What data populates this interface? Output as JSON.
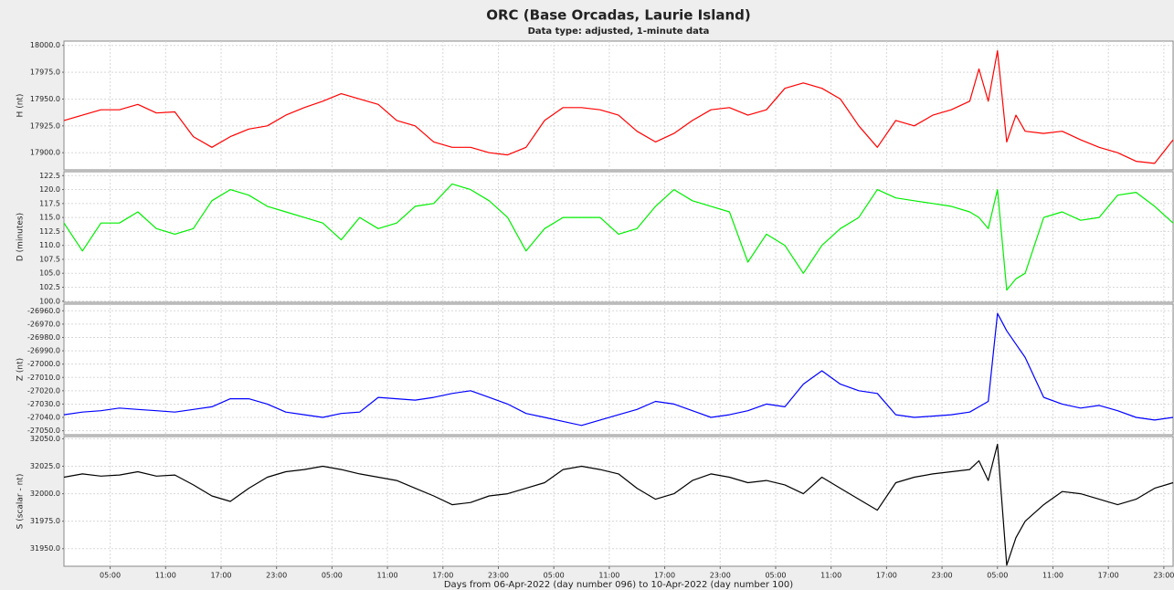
{
  "title": "ORC (Base Orcadas, Laurie Island)",
  "subtitle": "Data type: adjusted, 1-minute data",
  "x_label": "Days from 06-Apr-2022 (day number 096) to 10-Apr-2022 (day number 100)",
  "chart_data": [
    {
      "type": "line",
      "y_label": "H (nt)",
      "color": "#ff0000",
      "grid": true,
      "x": [
        0,
        2,
        4,
        6,
        8,
        10,
        12,
        14,
        16,
        18,
        20,
        22,
        24,
        26,
        28,
        30,
        32,
        34,
        36,
        38,
        40,
        42,
        44,
        46,
        48,
        50,
        52,
        54,
        56,
        58,
        60,
        62,
        64,
        66,
        68,
        70,
        72,
        74,
        76,
        78,
        80,
        82,
        84,
        86,
        88,
        90,
        92,
        94,
        96,
        98,
        99,
        100,
        101,
        102,
        103,
        104,
        106,
        108,
        110,
        112,
        114,
        116,
        118,
        120
      ],
      "values": [
        17930,
        17935,
        17940,
        17940,
        17945,
        17937,
        17938,
        17915,
        17905,
        17915,
        17922,
        17925,
        17935,
        17942,
        17948,
        17955,
        17950,
        17945,
        17930,
        17925,
        17910,
        17905,
        17905,
        17900,
        17898,
        17905,
        17930,
        17942,
        17942,
        17940,
        17935,
        17920,
        17910,
        17918,
        17930,
        17940,
        17942,
        17935,
        17940,
        17960,
        17965,
        17960,
        17950,
        17925,
        17905,
        17930,
        17925,
        17935,
        17940,
        17948,
        17978,
        17948,
        17995,
        17910,
        17935,
        17920,
        17918,
        17920,
        17912,
        17905,
        17900,
        17892,
        17890,
        17912
      ],
      "xlim": [
        0,
        120
      ],
      "ylim": [
        17884,
        18004
      ],
      "yticks": [
        {
          "value": 17900,
          "label": "17900.0"
        },
        {
          "value": 17925,
          "label": "17925.0"
        },
        {
          "value": 17950,
          "label": "17950.0"
        },
        {
          "value": 17975,
          "label": "17975.0"
        },
        {
          "value": 18000,
          "label": "18000.0"
        }
      ]
    },
    {
      "type": "line",
      "y_label": "D (minutes)",
      "color": "#00ee00",
      "grid": true,
      "x": [
        0,
        2,
        4,
        6,
        8,
        10,
        12,
        14,
        16,
        18,
        20,
        22,
        24,
        26,
        28,
        30,
        32,
        34,
        36,
        38,
        40,
        42,
        44,
        46,
        48,
        50,
        52,
        54,
        56,
        58,
        60,
        62,
        64,
        66,
        68,
        70,
        72,
        74,
        76,
        78,
        80,
        82,
        84,
        86,
        88,
        90,
        92,
        94,
        96,
        98,
        99,
        100,
        101,
        102,
        103,
        104,
        106,
        108,
        110,
        112,
        114,
        116,
        118,
        120
      ],
      "values": [
        114,
        109,
        114,
        114,
        116,
        113,
        112,
        113,
        118,
        120,
        119,
        117,
        116,
        115,
        114,
        111,
        115,
        113,
        114,
        117,
        117.5,
        121,
        120,
        118,
        115,
        109,
        113,
        115,
        115,
        115,
        112,
        113,
        117,
        120,
        118,
        117,
        116,
        107,
        112,
        110,
        105,
        110,
        113,
        115,
        120,
        118.5,
        118,
        117.5,
        117,
        116,
        115,
        113,
        120,
        102,
        104,
        105,
        115,
        116,
        114.5,
        115,
        119,
        119.5,
        117,
        114
      ],
      "xlim": [
        0,
        120
      ],
      "ylim": [
        99.8,
        123.2
      ],
      "yticks": [
        {
          "value": 100,
          "label": "100.0"
        },
        {
          "value": 102.5,
          "label": "102.5"
        },
        {
          "value": 105,
          "label": "105.0"
        },
        {
          "value": 107.5,
          "label": "107.5"
        },
        {
          "value": 110,
          "label": "110.0"
        },
        {
          "value": 112.5,
          "label": "112.5"
        },
        {
          "value": 115,
          "label": "115.0"
        },
        {
          "value": 117.5,
          "label": "117.5"
        },
        {
          "value": 120,
          "label": "120.0"
        },
        {
          "value": 122.5,
          "label": "122.5"
        }
      ]
    },
    {
      "type": "line",
      "y_label": "Z (nt)",
      "color": "#0000ff",
      "grid": true,
      "x": [
        0,
        2,
        4,
        6,
        8,
        10,
        12,
        14,
        16,
        18,
        20,
        22,
        24,
        26,
        28,
        30,
        32,
        34,
        36,
        38,
        40,
        42,
        44,
        46,
        48,
        50,
        52,
        54,
        56,
        58,
        60,
        62,
        64,
        66,
        68,
        70,
        72,
        74,
        76,
        78,
        80,
        82,
        84,
        86,
        88,
        90,
        92,
        94,
        96,
        98,
        99,
        100,
        101,
        102,
        103,
        104,
        106,
        108,
        110,
        112,
        114,
        116,
        118,
        120
      ],
      "values": [
        -27038,
        -27036,
        -27035,
        -27033,
        -27034,
        -27035,
        -27036,
        -27034,
        -27032,
        -27026,
        -27026,
        -27030,
        -27036,
        -27038,
        -27040,
        -27037,
        -27036,
        -27025,
        -27026,
        -27027,
        -27025,
        -27022,
        -27020,
        -27025,
        -27030,
        -27037,
        -27040,
        -27043,
        -27046,
        -27042,
        -27038,
        -27034,
        -27028,
        -27030,
        -27035,
        -27040,
        -27038,
        -27035,
        -27030,
        -27032,
        -27015,
        -27005,
        -27015,
        -27020,
        -27022,
        -27038,
        -27040,
        -27039,
        -27038,
        -27036,
        -27032,
        -27028,
        -26962,
        -26975,
        -26985,
        -26995,
        -27025,
        -27030,
        -27033,
        -27031,
        -27035,
        -27040,
        -27042,
        -27040
      ],
      "xlim": [
        0,
        120
      ],
      "ylim": [
        -27053,
        -26955
      ],
      "yticks": [
        {
          "value": -27050,
          "label": "-27050.0"
        },
        {
          "value": -27040,
          "label": "-27040.0"
        },
        {
          "value": -27030,
          "label": "-27030.0"
        },
        {
          "value": -27020,
          "label": "-27020.0"
        },
        {
          "value": -27010,
          "label": "-27010.0"
        },
        {
          "value": -27000,
          "label": "-27000.0"
        },
        {
          "value": -26990,
          "label": "-26990.0"
        },
        {
          "value": -26980,
          "label": "-26980.0"
        },
        {
          "value": -26970,
          "label": "-26970.0"
        },
        {
          "value": -26960,
          "label": "-26960.0"
        }
      ]
    },
    {
      "type": "line",
      "y_label": "S (scalar - nt)",
      "color": "#000000",
      "grid": true,
      "x": [
        0,
        2,
        4,
        6,
        8,
        10,
        12,
        14,
        16,
        18,
        20,
        22,
        24,
        26,
        28,
        30,
        32,
        34,
        36,
        38,
        40,
        42,
        44,
        46,
        48,
        50,
        52,
        54,
        56,
        58,
        60,
        62,
        64,
        66,
        68,
        70,
        72,
        74,
        76,
        78,
        80,
        82,
        84,
        86,
        88,
        90,
        92,
        94,
        96,
        98,
        99,
        100,
        101,
        102,
        103,
        104,
        106,
        108,
        110,
        112,
        114,
        116,
        118,
        120
      ],
      "values": [
        32015,
        32018,
        32016,
        32017,
        32020,
        32016,
        32017,
        32008,
        31998,
        31993,
        32005,
        32015,
        32020,
        32022,
        32025,
        32022,
        32018,
        32015,
        32012,
        32005,
        31998,
        31990,
        31992,
        31998,
        32000,
        32005,
        32010,
        32022,
        32025,
        32022,
        32018,
        32005,
        31995,
        32000,
        32012,
        32018,
        32015,
        32010,
        32012,
        32008,
        32000,
        32015,
        32005,
        31995,
        31985,
        32010,
        32015,
        32018,
        32020,
        32022,
        32030,
        32012,
        32045,
        31935,
        31960,
        31975,
        31990,
        32002,
        32000,
        31995,
        31990,
        31995,
        32005,
        32010
      ],
      "xlim": [
        0,
        120
      ],
      "ylim": [
        31934,
        32052
      ],
      "yticks": [
        {
          "value": 31950,
          "label": "31950.0"
        },
        {
          "value": 31975,
          "label": "31975.0"
        },
        {
          "value": 32000,
          "label": "32000.0"
        },
        {
          "value": 32025,
          "label": "32025.0"
        },
        {
          "value": 32050,
          "label": "32050.0"
        }
      ],
      "xticks": [
        {
          "value": 5,
          "label": "05:00"
        },
        {
          "value": 11,
          "label": "11:00"
        },
        {
          "value": 17,
          "label": "17:00"
        },
        {
          "value": 23,
          "label": "23:00"
        },
        {
          "value": 29,
          "label": "05:00"
        },
        {
          "value": 35,
          "label": "11:00"
        },
        {
          "value": 41,
          "label": "17:00"
        },
        {
          "value": 47,
          "label": "23:00"
        },
        {
          "value": 53,
          "label": "05:00"
        },
        {
          "value": 59,
          "label": "11:00"
        },
        {
          "value": 65,
          "label": "17:00"
        },
        {
          "value": 71,
          "label": "23:00"
        },
        {
          "value": 77,
          "label": "05:00"
        },
        {
          "value": 83,
          "label": "11:00"
        },
        {
          "value": 89,
          "label": "17:00"
        },
        {
          "value": 95,
          "label": "23:00"
        },
        {
          "value": 101,
          "label": "05:00"
        },
        {
          "value": 107,
          "label": "11:00"
        },
        {
          "value": 113,
          "label": "17:00"
        },
        {
          "value": 119,
          "label": "23:00"
        }
      ]
    }
  ]
}
